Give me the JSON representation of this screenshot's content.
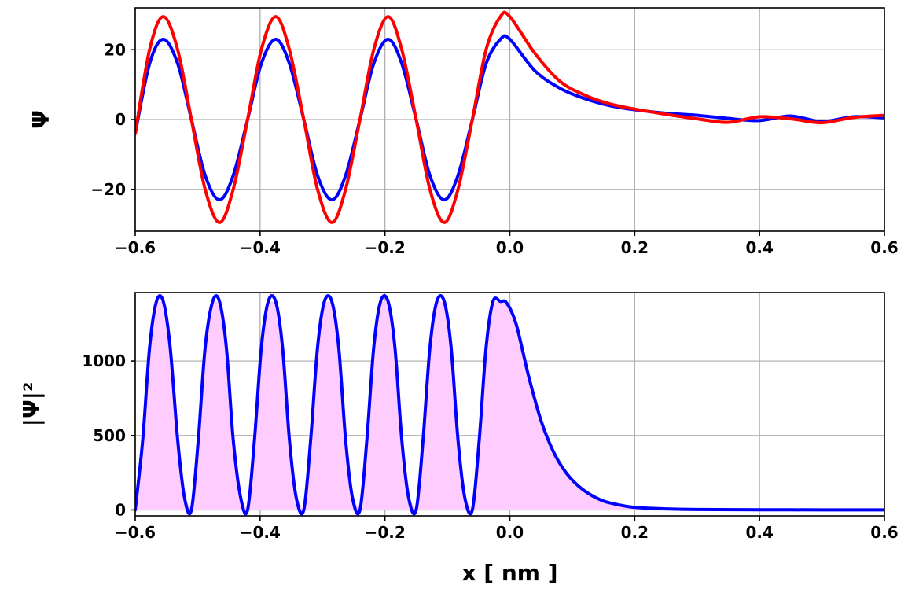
{
  "chart_data": [
    {
      "type": "line",
      "title": "",
      "xlabel": "",
      "ylabel": "Ψ",
      "xlim": [
        -0.6,
        0.6
      ],
      "ylim": [
        -32,
        32
      ],
      "xticks": [
        -0.6,
        -0.4,
        -0.2,
        0.0,
        0.2,
        0.4,
        0.6
      ],
      "xtick_labels": [
        "−0.6",
        "−0.4",
        "−0.2",
        "0.0",
        "0.2",
        "0.4",
        "0.6"
      ],
      "yticks": [
        -20,
        0,
        20
      ],
      "ytick_labels": [
        "−20",
        "0",
        "20"
      ],
      "grid": true,
      "legend": "none",
      "series": [
        {
          "color": "#0000ff",
          "x": [
            -0.6,
            -0.577,
            -0.555,
            -0.532,
            -0.51,
            -0.488,
            -0.465,
            -0.443,
            -0.42,
            -0.398,
            -0.375,
            -0.353,
            -0.33,
            -0.308,
            -0.285,
            -0.263,
            -0.24,
            -0.218,
            -0.195,
            -0.173,
            -0.15,
            -0.128,
            -0.105,
            -0.083,
            -0.06,
            -0.038,
            -0.015,
            0.0,
            0.04,
            0.08,
            0.12,
            0.16,
            0.2,
            0.25,
            0.3,
            0.35,
            0.4,
            0.45,
            0.5,
            0.55,
            0.6
          ],
          "values": [
            -4,
            16,
            23,
            16,
            0,
            -16,
            -23,
            -16,
            0,
            16,
            23,
            16,
            0,
            -16,
            -23,
            -16,
            0,
            16,
            23,
            16,
            0,
            -16,
            -23,
            -16,
            0,
            16,
            23,
            23,
            14,
            9,
            6,
            4,
            2.8,
            1.8,
            1.2,
            0.3,
            -0.3,
            1.0,
            -0.6,
            0.8,
            0.5
          ]
        },
        {
          "color": "#ff0000",
          "x": [
            -0.6,
            -0.577,
            -0.555,
            -0.532,
            -0.51,
            -0.488,
            -0.465,
            -0.443,
            -0.42,
            -0.398,
            -0.375,
            -0.353,
            -0.33,
            -0.308,
            -0.285,
            -0.263,
            -0.24,
            -0.218,
            -0.195,
            -0.173,
            -0.15,
            -0.128,
            -0.105,
            -0.083,
            -0.06,
            -0.038,
            -0.015,
            0.0,
            0.04,
            0.08,
            0.12,
            0.16,
            0.2,
            0.25,
            0.3,
            0.35,
            0.4,
            0.45,
            0.5,
            0.55,
            0.6
          ],
          "values": [
            -4,
            20,
            29.5,
            20,
            0,
            -20,
            -29.5,
            -20,
            0,
            20,
            29.5,
            20,
            0,
            -20,
            -29.5,
            -20,
            0,
            20,
            29.5,
            20,
            0,
            -20,
            -29.5,
            -20,
            0,
            20,
            29.5,
            29.5,
            19,
            11,
            7,
            4.5,
            3,
            1.5,
            0.2,
            -0.8,
            0.8,
            0.2,
            -0.9,
            0.6,
            1.2
          ]
        }
      ]
    },
    {
      "type": "area",
      "title": "",
      "xlabel": "x  [ nm ]",
      "ylabel": "|Ψ|²",
      "xlim": [
        -0.6,
        0.6
      ],
      "ylim": [
        -40,
        1460
      ],
      "xticks": [
        -0.6,
        -0.4,
        -0.2,
        0.0,
        0.2,
        0.4,
        0.6
      ],
      "xtick_labels": [
        "−0.6",
        "−0.4",
        "−0.2",
        "0.0",
        "0.2",
        "0.4",
        "0.6"
      ],
      "yticks": [
        0,
        500,
        1000
      ],
      "ytick_labels": [
        "0",
        "500",
        "1000"
      ],
      "grid": true,
      "legend": "none",
      "fill_color": "#ffccff",
      "series": [
        {
          "color": "#0000ff",
          "x": [
            -0.6,
            -0.588,
            -0.577,
            -0.566,
            -0.555,
            -0.544,
            -0.532,
            -0.521,
            -0.51,
            -0.499,
            -0.488,
            -0.476,
            -0.465,
            -0.454,
            -0.443,
            -0.431,
            -0.42,
            -0.409,
            -0.398,
            -0.387,
            -0.375,
            -0.364,
            -0.353,
            -0.342,
            -0.33,
            -0.319,
            -0.308,
            -0.297,
            -0.285,
            -0.274,
            -0.263,
            -0.252,
            -0.24,
            -0.229,
            -0.218,
            -0.207,
            -0.195,
            -0.184,
            -0.173,
            -0.162,
            -0.15,
            -0.139,
            -0.128,
            -0.117,
            -0.105,
            -0.094,
            -0.083,
            -0.072,
            -0.06,
            -0.049,
            -0.038,
            -0.027,
            -0.015,
            -0.005,
            0.01,
            0.03,
            0.05,
            0.07,
            0.09,
            0.11,
            0.13,
            0.15,
            0.17,
            0.19,
            0.21,
            0.25,
            0.3,
            0.4,
            0.5,
            0.6
          ],
          "values": [
            0,
            470,
            1090,
            1400,
            1400,
            1090,
            470,
            80,
            0,
            470,
            1090,
            1400,
            1400,
            1090,
            470,
            80,
            0,
            470,
            1090,
            1400,
            1400,
            1090,
            470,
            80,
            0,
            470,
            1090,
            1400,
            1400,
            1090,
            470,
            80,
            0,
            470,
            1090,
            1400,
            1400,
            1090,
            470,
            80,
            0,
            470,
            1090,
            1400,
            1400,
            1090,
            470,
            80,
            0,
            470,
            1090,
            1400,
            1400,
            1390,
            1250,
            900,
            600,
            390,
            250,
            160,
            100,
            60,
            38,
            22,
            14,
            7,
            3,
            1,
            0.5,
            0.3
          ]
        }
      ]
    }
  ]
}
